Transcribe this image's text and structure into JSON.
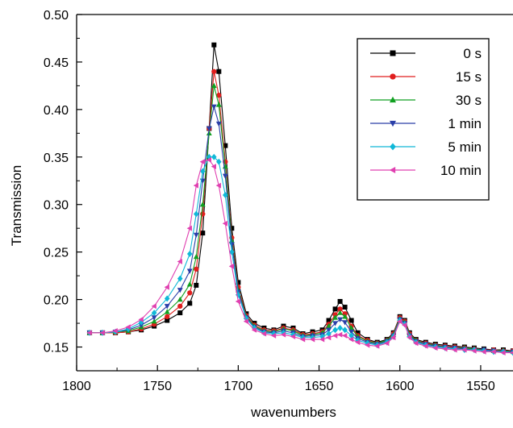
{
  "chart_data": {
    "type": "line",
    "title": "",
    "xlabel": "wavenumbers",
    "ylabel": "Transmission",
    "xlim": [
      1800,
      1530
    ],
    "ylim": [
      0.125,
      0.5
    ],
    "x_reversed": true,
    "x_ticks": [
      1800,
      1750,
      1700,
      1650,
      1600,
      1550
    ],
    "x_tick_labels": [
      "1800",
      "1750",
      "1700",
      "1650",
      "1600",
      "1550"
    ],
    "y_ticks": [
      0.15,
      0.2,
      0.25,
      0.3,
      0.35,
      0.4,
      0.45,
      0.5
    ],
    "y_tick_labels": [
      "0.15",
      "0.20",
      "0.25",
      "0.30",
      "0.35",
      "0.40",
      "0.45",
      "0.50"
    ],
    "grid": false,
    "legend_position": "top-right",
    "x": [
      1792,
      1784,
      1776,
      1768,
      1760,
      1752,
      1744,
      1736,
      1730,
      1726,
      1722,
      1718,
      1715,
      1712,
      1708,
      1704,
      1700,
      1695,
      1690,
      1684,
      1678,
      1672,
      1666,
      1660,
      1654,
      1648,
      1644,
      1640,
      1637,
      1634,
      1630,
      1626,
      1620,
      1614,
      1608,
      1604,
      1600,
      1597,
      1594,
      1590,
      1584,
      1578,
      1572,
      1566,
      1560,
      1554,
      1548,
      1542,
      1536,
      1530
    ],
    "series": [
      {
        "name": "0 s",
        "color": "#000000",
        "marker": "square",
        "values": [
          0.165,
          0.165,
          0.165,
          0.166,
          0.168,
          0.172,
          0.178,
          0.186,
          0.196,
          0.215,
          0.27,
          0.38,
          0.468,
          0.44,
          0.362,
          0.275,
          0.218,
          0.185,
          0.175,
          0.17,
          0.168,
          0.172,
          0.17,
          0.164,
          0.166,
          0.168,
          0.178,
          0.19,
          0.198,
          0.192,
          0.178,
          0.165,
          0.158,
          0.155,
          0.158,
          0.165,
          0.182,
          0.178,
          0.165,
          0.158,
          0.155,
          0.153,
          0.152,
          0.151,
          0.15,
          0.149,
          0.148,
          0.147,
          0.147,
          0.146
        ]
      },
      {
        "name": "15 s",
        "color": "#e01e1e",
        "marker": "circle",
        "values": [
          0.165,
          0.165,
          0.165,
          0.166,
          0.169,
          0.174,
          0.182,
          0.193,
          0.207,
          0.232,
          0.29,
          0.38,
          0.44,
          0.415,
          0.345,
          0.265,
          0.213,
          0.183,
          0.173,
          0.168,
          0.167,
          0.17,
          0.168,
          0.163,
          0.164,
          0.166,
          0.174,
          0.184,
          0.19,
          0.185,
          0.172,
          0.162,
          0.157,
          0.154,
          0.157,
          0.164,
          0.181,
          0.177,
          0.164,
          0.157,
          0.154,
          0.152,
          0.151,
          0.15,
          0.149,
          0.148,
          0.147,
          0.147,
          0.146,
          0.146
        ]
      },
      {
        "name": "30 s",
        "color": "#10a020",
        "marker": "triangle-up",
        "values": [
          0.165,
          0.165,
          0.166,
          0.167,
          0.171,
          0.177,
          0.187,
          0.2,
          0.216,
          0.245,
          0.3,
          0.375,
          0.425,
          0.405,
          0.34,
          0.262,
          0.21,
          0.182,
          0.172,
          0.167,
          0.166,
          0.169,
          0.167,
          0.162,
          0.163,
          0.165,
          0.172,
          0.181,
          0.186,
          0.182,
          0.17,
          0.161,
          0.156,
          0.154,
          0.157,
          0.163,
          0.18,
          0.176,
          0.163,
          0.157,
          0.153,
          0.152,
          0.15,
          0.149,
          0.149,
          0.148,
          0.147,
          0.146,
          0.146,
          0.145
        ]
      },
      {
        "name": "1 min",
        "color": "#2a3ea8",
        "marker": "triangle-down",
        "values": [
          0.165,
          0.165,
          0.166,
          0.168,
          0.173,
          0.181,
          0.193,
          0.21,
          0.23,
          0.268,
          0.325,
          0.38,
          0.403,
          0.385,
          0.33,
          0.258,
          0.208,
          0.181,
          0.171,
          0.166,
          0.165,
          0.167,
          0.165,
          0.161,
          0.162,
          0.163,
          0.168,
          0.175,
          0.179,
          0.176,
          0.166,
          0.159,
          0.155,
          0.153,
          0.156,
          0.162,
          0.179,
          0.175,
          0.162,
          0.156,
          0.153,
          0.151,
          0.15,
          0.149,
          0.148,
          0.147,
          0.147,
          0.146,
          0.145,
          0.145
        ]
      },
      {
        "name": "5 min",
        "color": "#10b8d8",
        "marker": "diamond",
        "values": [
          0.165,
          0.165,
          0.166,
          0.169,
          0.176,
          0.186,
          0.201,
          0.222,
          0.248,
          0.29,
          0.335,
          0.35,
          0.35,
          0.345,
          0.31,
          0.25,
          0.205,
          0.18,
          0.17,
          0.165,
          0.164,
          0.165,
          0.163,
          0.16,
          0.16,
          0.161,
          0.164,
          0.168,
          0.17,
          0.168,
          0.162,
          0.157,
          0.154,
          0.152,
          0.155,
          0.161,
          0.178,
          0.174,
          0.161,
          0.155,
          0.152,
          0.15,
          0.149,
          0.148,
          0.147,
          0.147,
          0.146,
          0.145,
          0.145,
          0.144
        ]
      },
      {
        "name": "10 min",
        "color": "#e040b0",
        "marker": "triangle-left",
        "values": [
          0.165,
          0.165,
          0.167,
          0.171,
          0.179,
          0.193,
          0.213,
          0.24,
          0.275,
          0.32,
          0.345,
          0.347,
          0.34,
          0.32,
          0.28,
          0.235,
          0.198,
          0.177,
          0.168,
          0.164,
          0.162,
          0.163,
          0.161,
          0.158,
          0.158,
          0.158,
          0.16,
          0.162,
          0.163,
          0.162,
          0.158,
          0.155,
          0.152,
          0.151,
          0.154,
          0.16,
          0.177,
          0.173,
          0.16,
          0.154,
          0.151,
          0.149,
          0.148,
          0.147,
          0.147,
          0.146,
          0.145,
          0.145,
          0.144,
          0.144
        ]
      }
    ]
  }
}
